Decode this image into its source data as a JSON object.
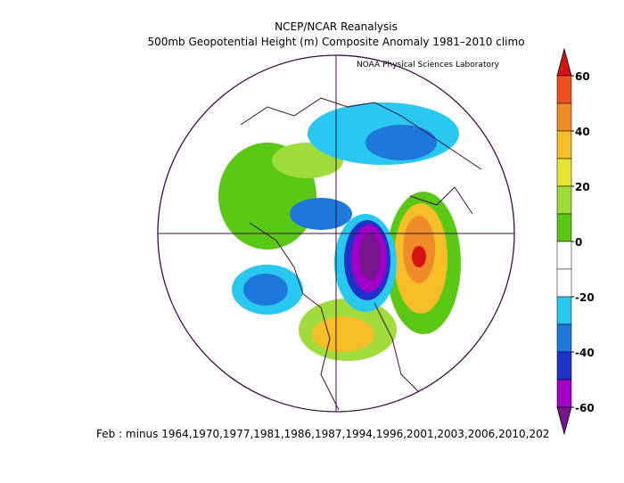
{
  "title": "NCEP/NCAR Reanalysis",
  "subtitle": "500mb Geopotential Height (m) Composite Anomaly 1981–2010 climo",
  "credit": "NOAA Physical Sciences Laboratory",
  "footer": "Feb :  minus 1964,1970,1977,1981,1986,1987,1994,1996,2001,2003,2006,2010,202",
  "colorbar": {
    "ticks": [
      60,
      40,
      20,
      0,
      -20,
      -40,
      -60
    ],
    "lim": [
      -60,
      60
    ],
    "colors": [
      "#d21414",
      "#f0501e",
      "#f08c28",
      "#f5be28",
      "#e6e632",
      "#a0dc3c",
      "#5ac814",
      "#ffffff",
      "#ffffff",
      "#28c8f0",
      "#1e78dc",
      "#1e32c8",
      "#a000c8",
      "#78148c"
    ]
  }
}
